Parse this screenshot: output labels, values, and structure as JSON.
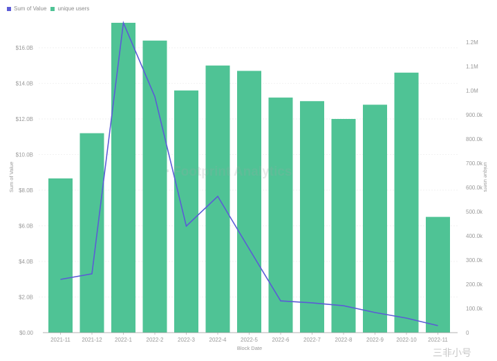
{
  "legend": [
    {
      "label": "Sum of Value",
      "color": "#5b5bd6"
    },
    {
      "label": "unique users",
      "color": "#4fc395"
    }
  ],
  "watermark": "Footprint Analytics",
  "corner_mark": "三非小号",
  "colors": {
    "bar": "#4fc395",
    "line": "#5b5bd6",
    "grid": "#e6e6e6"
  },
  "chart_data": {
    "type": "bar",
    "title": "",
    "xlabel": "Block Date",
    "ylabel": "Sum of Value",
    "y2label": "unique users",
    "categories": [
      "2021-11",
      "2021-12",
      "2022-1",
      "2022-2",
      "2022-3",
      "2022-4",
      "2022-5",
      "2022-6",
      "2022-7",
      "2022-8",
      "2022-9",
      "2022-10",
      "2022-11"
    ],
    "series": [
      {
        "name": "Sum of Value",
        "type": "bar",
        "axis": "left",
        "unit": "B",
        "values": [
          8.66,
          11.2,
          17.4,
          16.4,
          13.6,
          15.0,
          14.7,
          13.2,
          13.0,
          12.0,
          12.8,
          14.6,
          6.5
        ]
      },
      {
        "name": "unique users",
        "type": "line",
        "axis": "right",
        "values": [
          220000,
          243000,
          1280000,
          975000,
          440000,
          563000,
          346000,
          131000,
          123000,
          111000,
          83000,
          60000,
          29000
        ]
      }
    ],
    "ylim": [
      0,
      17.4
    ],
    "y2lim": [
      0,
      1290000
    ],
    "yticks": [
      "$0.00",
      "$2.0B",
      "$4.0B",
      "$6.0B",
      "$8.0B",
      "$10.0B",
      "$12.0B",
      "$14.0B",
      "$16.0B"
    ],
    "y2ticks": [
      "0",
      "100.0k",
      "200.0k",
      "300.0k",
      "400.0k",
      "500.0k",
      "600.0k",
      "700.0k",
      "800.0k",
      "900.0k",
      "1.0M",
      "1.1M",
      "1.2M"
    ],
    "grid": true,
    "legend_position": "top-left"
  }
}
